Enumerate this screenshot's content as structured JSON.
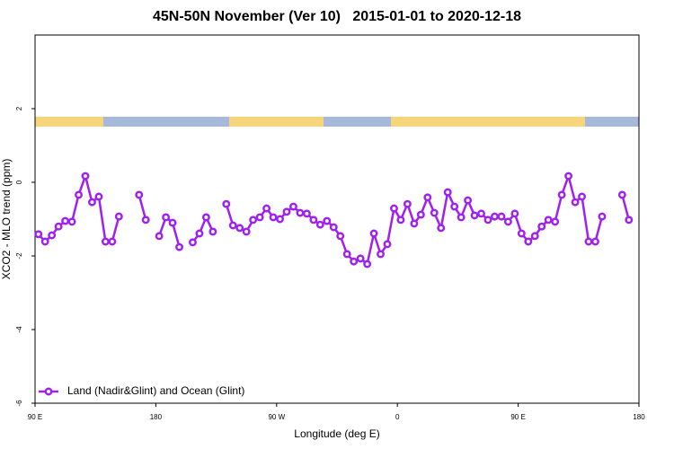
{
  "chart_data": {
    "type": "line",
    "title": "45N-50N November (Ver 10)   2015-01-01 to 2020-12-18",
    "x_label": "Longitude (deg E)",
    "y_label": "XCO2 - MLO trend (ppm)",
    "xlim": [
      90,
      540
    ],
    "xticks": [
      {
        "value": 90,
        "label": "90 E"
      },
      180,
      {
        "value": 270,
        "label": "90 W"
      },
      {
        "value": 360,
        "label": "0"
      },
      {
        "value": 450,
        "label": "90 E"
      },
      {
        "value": 540,
        "label": "180"
      }
    ],
    "ylim": [
      -6,
      4
    ],
    "yticks": [
      2,
      0,
      -2,
      -4,
      -6
    ],
    "legend_position": "bottom left",
    "x": [
      92.5,
      97.5,
      102.5,
      107.5,
      112.5,
      117.5,
      122.5,
      127.5,
      132.5,
      137.5,
      142.5,
      147.5,
      152.5,
      157.5,
      162.5,
      167.5,
      172.5,
      177.5,
      182.5,
      187.5,
      192.5,
      197.5,
      202.5,
      207.5,
      212.5,
      217.5,
      222.5,
      227.5,
      232.5,
      237.5,
      242.5,
      247.5,
      252.5,
      257.5,
      262.5,
      267.5,
      272.5,
      277.5,
      282.5,
      287.5,
      292.5,
      297.5,
      302.5,
      307.5,
      312.5,
      317.5,
      322.5,
      327.5,
      332.5,
      337.5,
      342.5,
      347.5,
      352.5,
      357.5,
      362.5,
      367.5,
      372.5,
      377.5,
      382.5,
      387.5,
      392.5,
      397.5,
      402.5,
      407.5,
      412.5,
      417.5,
      422.5,
      427.5,
      432.5,
      437.5,
      442.5,
      447.5,
      452.5,
      457.5,
      462.5,
      467.5,
      472.5,
      477.5,
      482.5,
      487.5,
      492.5,
      497.5,
      502.5,
      507.5,
      512.5,
      517.5,
      522.5,
      527.5,
      532.5
    ],
    "series": [
      {
        "name": "Land (Nadir&Glint) and Ocean (Glint)",
        "color": "#a020f0",
        "values": [
          -1.41,
          -1.61,
          -1.44,
          -1.2,
          -1.05,
          -1.07,
          -0.34,
          0.17,
          -0.54,
          -0.39,
          -1.61,
          -1.61,
          -0.93,
          null,
          null,
          -0.34,
          -1.02,
          null,
          -1.46,
          -0.95,
          -1.1,
          -1.76,
          null,
          -1.63,
          -1.39,
          -0.95,
          -1.34,
          null,
          -0.59,
          -1.17,
          -1.24,
          -1.34,
          -1.02,
          -0.95,
          -0.71,
          -0.95,
          -1.0,
          -0.8,
          -0.66,
          -0.83,
          -0.85,
          -1.02,
          -1.15,
          -1.05,
          -1.22,
          -1.46,
          -1.95,
          -2.15,
          -2.07,
          -2.22,
          -1.39,
          -1.95,
          -1.68,
          -0.71,
          -1.02,
          -0.59,
          -1.12,
          -0.88,
          -0.41,
          -0.83,
          -1.24,
          -0.27,
          -0.66,
          -0.95,
          -0.49,
          -0.9,
          -0.85,
          -1.02,
          -0.93,
          -0.93,
          -1.07,
          -0.85,
          -1.39,
          -1.61,
          -1.46,
          -1.2,
          -1.02,
          -1.07,
          -0.34,
          0.17,
          -0.54,
          -0.39,
          -1.61,
          -1.61,
          -0.93,
          null,
          null,
          -0.34,
          -1.02
        ]
      }
    ]
  }
}
